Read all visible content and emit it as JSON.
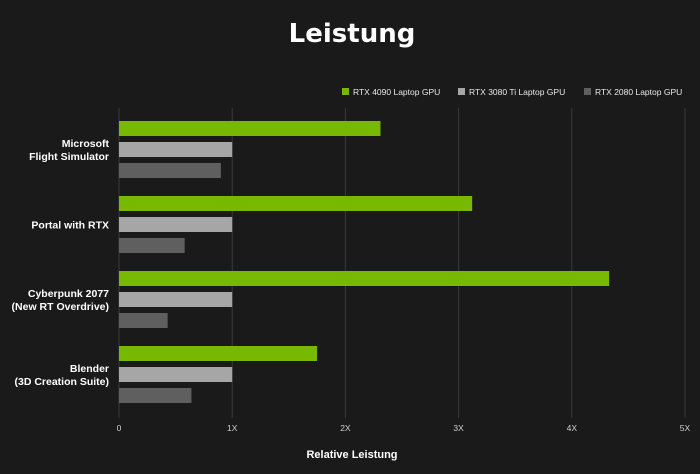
{
  "chart_data": {
    "type": "bar",
    "orientation": "horizontal",
    "title": "Leistung",
    "xlabel": "Relative Leistung",
    "ylabel": "",
    "xlim": [
      0,
      5
    ],
    "xticks": [
      0,
      1,
      2,
      3,
      4,
      5
    ],
    "xtick_labels": [
      "0",
      "1X",
      "2X",
      "3X",
      "4X",
      "5X"
    ],
    "grid": true,
    "legend_position": "top-right",
    "categories": [
      [
        "Microsoft",
        "Flight Simulator"
      ],
      [
        "Portal with RTX"
      ],
      [
        "Cyberpunk 2077",
        "(New RT Overdrive)"
      ],
      [
        "Blender",
        "(3D Creation Suite)"
      ]
    ],
    "series": [
      {
        "name": "RTX 4090 Laptop GPU",
        "color": "#76b900",
        "values": [
          2.31,
          3.12,
          4.33,
          1.75
        ]
      },
      {
        "name": "RTX 3080 Ti Laptop GPU",
        "color": "#a6a6a6",
        "values": [
          1.0,
          1.0,
          1.0,
          1.0
        ]
      },
      {
        "name": "RTX 2080 Laptop GPU",
        "color": "#5f5f5f",
        "values": [
          0.9,
          0.58,
          0.43,
          0.64
        ]
      }
    ]
  }
}
